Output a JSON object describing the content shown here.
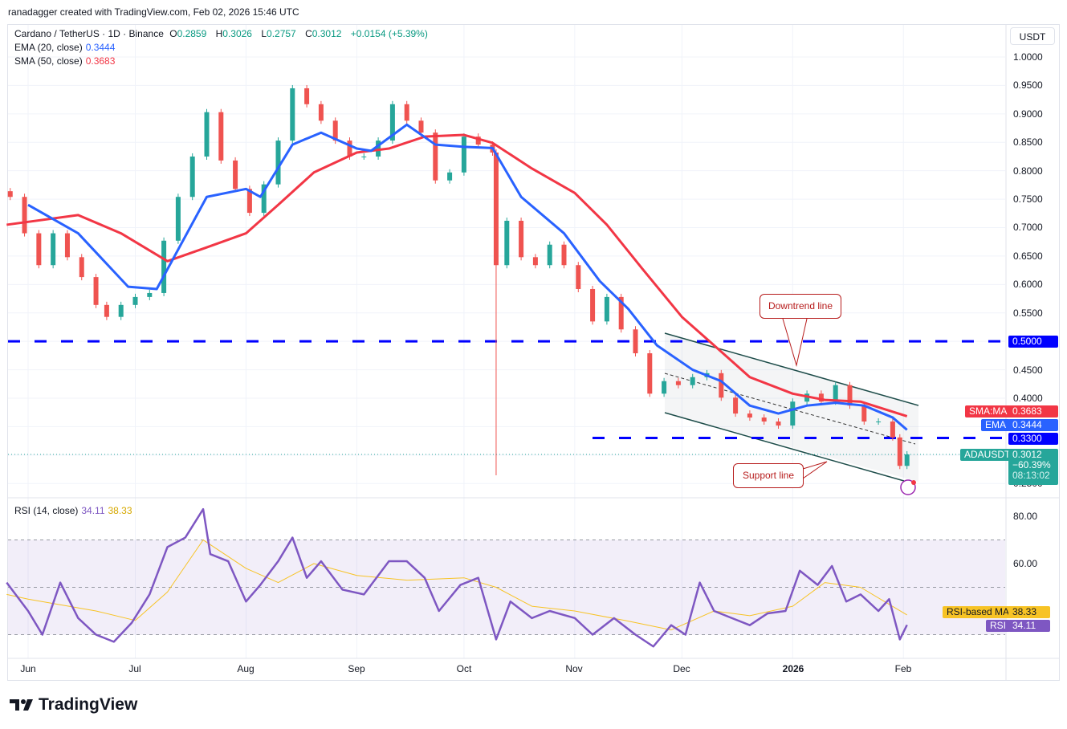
{
  "credit": "ranadagger created with TradingView.com, Feb 02, 2026 15:46 UTC",
  "symbol": {
    "title": "Cardano / TetherUS · 1D · Binance",
    "o_label": "O",
    "o": "0.2859",
    "h_label": "H",
    "h": "0.3026",
    "l_label": "L",
    "l": "0.2757",
    "c_label": "C",
    "c": "0.3012",
    "change": "+0.0154 (+5.39%)"
  },
  "indicators": {
    "ema_label": "EMA (20, close)",
    "ema_value": "0.3444",
    "sma_label": "SMA (50, close)",
    "sma_value": "0.3683",
    "rsi_label": "RSI (14, close)",
    "rsi_value": "34.11",
    "rsi_ma_value": "38.33"
  },
  "currency": "USDT",
  "tags": {
    "sma_name": "SMA:MA",
    "sma": "0.3683",
    "ema_name": "EMA",
    "ema": "0.3444",
    "level_low": "0.3300",
    "level_high": "0.5000",
    "symbol_name": "ADAUSDT",
    "price": "0.3012",
    "change_pct": "−60.39%",
    "countdown": "08:13:02",
    "rsi_ma_name": "RSI-based MA",
    "rsi_ma": "38.33",
    "rsi_name": "RSI",
    "rsi": "34.11"
  },
  "annotations": {
    "downtrend": "Downtrend line",
    "support": "Support line"
  },
  "brand": "TradingView",
  "colors": {
    "up": "#26a69a",
    "down": "#ef5350",
    "ema": "#2962ff",
    "sma": "#f23645",
    "level": "#0000ff",
    "rsi": "#7e57c2",
    "rsi_ma": "#f7c325"
  },
  "chart_data": {
    "type": "candlestick",
    "xlabels": [
      "Jun",
      "Jul",
      "Aug",
      "Sep",
      "Oct",
      "Nov",
      "Dec",
      "2026",
      "Feb"
    ],
    "yticks": [
      "1.0000",
      "0.9500",
      "0.9000",
      "0.8500",
      "0.8000",
      "0.7500",
      "0.7000",
      "0.6500",
      "0.6000",
      "0.5500",
      "0.5000",
      "0.4500",
      "0.4000",
      "0.3500",
      "0.3000",
      "0.2500"
    ],
    "ylim": [
      0.25,
      1.0
    ],
    "levels": [
      0.5,
      0.33
    ],
    "close": [
      [
        "2025-05-27",
        0.754
      ],
      [
        "2025-05-31",
        0.69
      ],
      [
        "2025-06-04",
        0.634
      ],
      [
        "2025-06-08",
        0.69
      ],
      [
        "2025-06-12",
        0.648
      ],
      [
        "2025-06-16",
        0.613
      ],
      [
        "2025-06-20",
        0.564
      ],
      [
        "2025-06-23",
        0.543
      ],
      [
        "2025-06-27",
        0.564
      ],
      [
        "2025-07-01",
        0.578
      ],
      [
        "2025-07-05",
        0.585
      ],
      [
        "2025-07-09",
        0.677
      ],
      [
        "2025-07-13",
        0.754
      ],
      [
        "2025-07-17",
        0.825
      ],
      [
        "2025-07-21",
        0.903
      ],
      [
        "2025-07-25",
        0.818
      ],
      [
        "2025-07-29",
        0.768
      ],
      [
        "2025-08-02",
        0.726
      ],
      [
        "2025-08-06",
        0.776
      ],
      [
        "2025-08-10",
        0.853
      ],
      [
        "2025-08-14",
        0.945
      ],
      [
        "2025-08-18",
        0.917
      ],
      [
        "2025-08-22",
        0.888
      ],
      [
        "2025-08-26",
        0.853
      ],
      [
        "2025-08-30",
        0.825
      ],
      [
        "2025-09-03",
        0.825
      ],
      [
        "2025-09-07",
        0.853
      ],
      [
        "2025-09-11",
        0.917
      ],
      [
        "2025-09-15",
        0.888
      ],
      [
        "2025-09-19",
        0.867
      ],
      [
        "2025-09-23",
        0.783
      ],
      [
        "2025-09-27",
        0.797
      ],
      [
        "2025-10-01",
        0.86
      ],
      [
        "2025-10-05",
        0.846
      ],
      [
        "2025-10-09",
        0.832
      ],
      [
        "2025-10-10",
        0.634,
        0.27
      ],
      [
        "2025-10-13",
        0.712
      ],
      [
        "2025-10-17",
        0.648
      ],
      [
        "2025-10-21",
        0.634
      ],
      [
        "2025-10-25",
        0.67
      ],
      [
        "2025-10-29",
        0.634
      ],
      [
        "2025-11-02",
        0.592
      ],
      [
        "2025-11-06",
        0.535
      ],
      [
        "2025-11-10",
        0.578
      ],
      [
        "2025-11-14",
        0.521
      ],
      [
        "2025-11-18",
        0.479
      ],
      [
        "2025-11-22",
        0.408
      ],
      [
        "2025-11-26",
        0.43
      ],
      [
        "2025-11-30",
        0.423
      ],
      [
        "2025-12-04",
        0.437
      ],
      [
        "2025-12-08",
        0.444
      ],
      [
        "2025-12-12",
        0.401
      ],
      [
        "2025-12-16",
        0.373
      ],
      [
        "2025-12-20",
        0.366
      ],
      [
        "2025-12-24",
        0.359
      ],
      [
        "2025-12-28",
        0.352
      ],
      [
        "2026-01-01",
        0.394
      ],
      [
        "2026-01-05",
        0.408
      ],
      [
        "2026-01-09",
        0.394
      ],
      [
        "2026-01-13",
        0.423
      ],
      [
        "2026-01-17",
        0.387
      ],
      [
        "2026-01-21",
        0.359
      ],
      [
        "2026-01-25",
        0.359
      ],
      [
        "2026-01-29",
        0.331
      ],
      [
        "2026-01-31",
        0.281
      ],
      [
        "2026-02-02",
        0.3012
      ]
    ],
    "ema": [
      [
        "2025-06-01",
        0.74
      ],
      [
        "2025-06-15",
        0.69
      ],
      [
        "2025-06-29",
        0.596
      ],
      [
        "2025-07-07",
        0.592
      ],
      [
        "2025-07-21",
        0.754
      ],
      [
        "2025-08-01",
        0.768
      ],
      [
        "2025-08-05",
        0.754
      ],
      [
        "2025-08-14",
        0.846
      ],
      [
        "2025-08-22",
        0.867
      ],
      [
        "2025-09-01",
        0.839
      ],
      [
        "2025-09-05",
        0.835
      ],
      [
        "2025-09-15",
        0.881
      ],
      [
        "2025-09-23",
        0.846
      ],
      [
        "2025-10-01",
        0.842
      ],
      [
        "2025-10-09",
        0.84
      ],
      [
        "2025-10-17",
        0.754
      ],
      [
        "2025-10-29",
        0.69
      ],
      [
        "2025-11-08",
        0.606
      ],
      [
        "2025-11-16",
        0.557
      ],
      [
        "2025-11-24",
        0.493
      ],
      [
        "2025-12-04",
        0.45
      ],
      [
        "2025-12-12",
        0.43
      ],
      [
        "2025-12-20",
        0.387
      ],
      [
        "2025-12-28",
        0.373
      ],
      [
        "2026-01-05",
        0.387
      ],
      [
        "2026-01-13",
        0.392
      ],
      [
        "2026-01-21",
        0.387
      ],
      [
        "2026-01-29",
        0.366
      ],
      [
        "2026-02-02",
        0.3444
      ]
    ],
    "sma": [
      [
        "2025-05-26",
        0.705
      ],
      [
        "2025-06-15",
        0.722
      ],
      [
        "2025-06-27",
        0.69
      ],
      [
        "2025-07-10",
        0.641
      ],
      [
        "2025-07-20",
        0.663
      ],
      [
        "2025-08-01",
        0.69
      ],
      [
        "2025-08-10",
        0.74
      ],
      [
        "2025-08-20",
        0.797
      ],
      [
        "2025-09-01",
        0.832
      ],
      [
        "2025-09-10",
        0.839
      ],
      [
        "2025-09-20",
        0.86
      ],
      [
        "2025-10-01",
        0.863
      ],
      [
        "2025-10-09",
        0.849
      ],
      [
        "2025-10-20",
        0.804
      ],
      [
        "2025-11-01",
        0.761
      ],
      [
        "2025-11-10",
        0.705
      ],
      [
        "2025-11-20",
        0.627
      ],
      [
        "2025-12-01",
        0.543
      ],
      [
        "2025-12-10",
        0.493
      ],
      [
        "2025-12-20",
        0.437
      ],
      [
        "2026-01-01",
        0.408
      ],
      [
        "2026-01-10",
        0.397
      ],
      [
        "2026-01-20",
        0.394
      ],
      [
        "2026-02-02",
        0.3683
      ]
    ],
    "rsi": {
      "ylim": [
        20,
        90
      ],
      "bands": [
        70,
        50,
        30
      ],
      "yticks": [
        "80.00",
        "60.00"
      ],
      "values": [
        [
          "2025-05-26",
          52
        ],
        [
          "2025-06-01",
          40
        ],
        [
          "2025-06-05",
          30
        ],
        [
          "2025-06-10",
          52
        ],
        [
          "2025-06-15",
          37
        ],
        [
          "2025-06-20",
          30
        ],
        [
          "2025-06-25",
          27
        ],
        [
          "2025-06-30",
          35
        ],
        [
          "2025-07-05",
          47
        ],
        [
          "2025-07-10",
          67
        ],
        [
          "2025-07-15",
          71
        ],
        [
          "2025-07-20",
          83
        ],
        [
          "2025-07-22",
          64
        ],
        [
          "2025-07-27",
          61
        ],
        [
          "2025-08-01",
          44
        ],
        [
          "2025-08-05",
          51
        ],
        [
          "2025-08-10",
          61
        ],
        [
          "2025-08-14",
          71
        ],
        [
          "2025-08-18",
          54
        ],
        [
          "2025-08-22",
          61
        ],
        [
          "2025-08-28",
          49
        ],
        [
          "2025-09-03",
          47
        ],
        [
          "2025-09-10",
          61
        ],
        [
          "2025-09-15",
          61
        ],
        [
          "2025-09-20",
          54
        ],
        [
          "2025-09-24",
          40
        ],
        [
          "2025-09-30",
          51
        ],
        [
          "2025-10-05",
          54
        ],
        [
          "2025-10-10",
          28
        ],
        [
          "2025-10-14",
          44
        ],
        [
          "2025-10-20",
          37
        ],
        [
          "2025-10-25",
          40
        ],
        [
          "2025-11-01",
          37
        ],
        [
          "2025-11-06",
          30
        ],
        [
          "2025-11-12",
          37
        ],
        [
          "2025-11-18",
          30
        ],
        [
          "2025-11-23",
          25
        ],
        [
          "2025-11-28",
          34
        ],
        [
          "2025-12-02",
          30
        ],
        [
          "2025-12-06",
          52
        ],
        [
          "2025-12-10",
          40
        ],
        [
          "2025-12-15",
          37
        ],
        [
          "2025-12-20",
          34
        ],
        [
          "2025-12-25",
          39
        ],
        [
          "2025-12-30",
          40
        ],
        [
          "2026-01-03",
          57
        ],
        [
          "2026-01-08",
          51
        ],
        [
          "2026-01-12",
          59
        ],
        [
          "2026-01-16",
          44
        ],
        [
          "2026-01-20",
          47
        ],
        [
          "2026-01-25",
          40
        ],
        [
          "2026-01-28",
          45
        ],
        [
          "2026-01-31",
          28
        ],
        [
          "2026-02-02",
          34.11
        ]
      ],
      "ma": [
        [
          "2025-05-26",
          47
        ],
        [
          "2025-06-01",
          45
        ],
        [
          "2025-06-20",
          40
        ],
        [
          "2025-07-01",
          36
        ],
        [
          "2025-07-10",
          48
        ],
        [
          "2025-07-20",
          70
        ],
        [
          "2025-08-01",
          58
        ],
        [
          "2025-08-10",
          52
        ],
        [
          "2025-08-20",
          60
        ],
        [
          "2025-09-01",
          55
        ],
        [
          "2025-09-15",
          53
        ],
        [
          "2025-10-01",
          54
        ],
        [
          "2025-10-10",
          50
        ],
        [
          "2025-10-20",
          42
        ],
        [
          "2025-11-01",
          40
        ],
        [
          "2025-11-15",
          36
        ],
        [
          "2025-11-28",
          32
        ],
        [
          "2025-12-10",
          40
        ],
        [
          "2025-12-20",
          38
        ],
        [
          "2026-01-01",
          42
        ],
        [
          "2026-01-10",
          52
        ],
        [
          "2026-01-20",
          50
        ],
        [
          "2026-02-02",
          38.33
        ]
      ]
    }
  }
}
